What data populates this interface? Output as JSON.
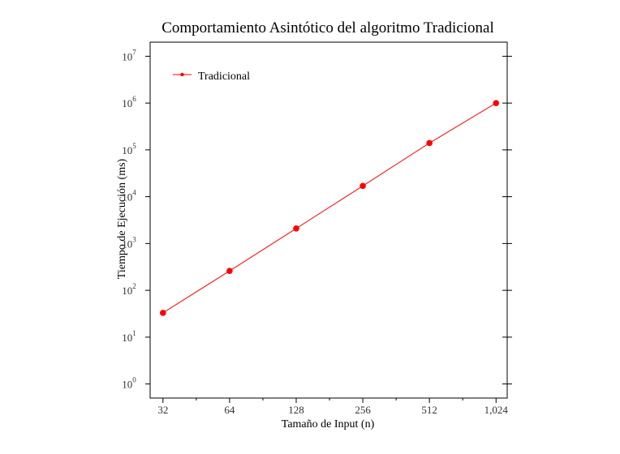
{
  "chart_data": {
    "type": "line",
    "title": "Comportamiento Asintótico del algoritmo Tradicional",
    "xlabel": "Tamaño de Input (n)",
    "ylabel": "Tiempo de Ejecución (ms)",
    "x_scale": "log2",
    "y_scale": "log10",
    "xlim": [
      28,
      1150
    ],
    "ylim": [
      0.5,
      20000000
    ],
    "x_ticks": [
      32,
      64,
      128,
      256,
      512,
      1024
    ],
    "x_tick_labels": [
      "32",
      "64",
      "128",
      "256",
      "512",
      "1,024"
    ],
    "y_ticks": [
      {
        "base": "10",
        "exp": "0",
        "value": 1
      },
      {
        "base": "10",
        "exp": "1",
        "value": 10
      },
      {
        "base": "10",
        "exp": "2",
        "value": 100
      },
      {
        "base": "10",
        "exp": "3",
        "value": 1000
      },
      {
        "base": "10",
        "exp": "4",
        "value": 10000
      },
      {
        "base": "10",
        "exp": "5",
        "value": 100000
      },
      {
        "base": "10",
        "exp": "6",
        "value": 1000000
      },
      {
        "base": "10",
        "exp": "7",
        "value": 10000000
      }
    ],
    "series": [
      {
        "name": "Tradicional",
        "color": "#ff0000",
        "x": [
          32,
          64,
          128,
          256,
          512,
          1024
        ],
        "y": [
          33,
          260,
          2100,
          17000,
          140000,
          1000000
        ]
      }
    ],
    "legend_position": "top-left",
    "grid": false,
    "frame": "box"
  }
}
